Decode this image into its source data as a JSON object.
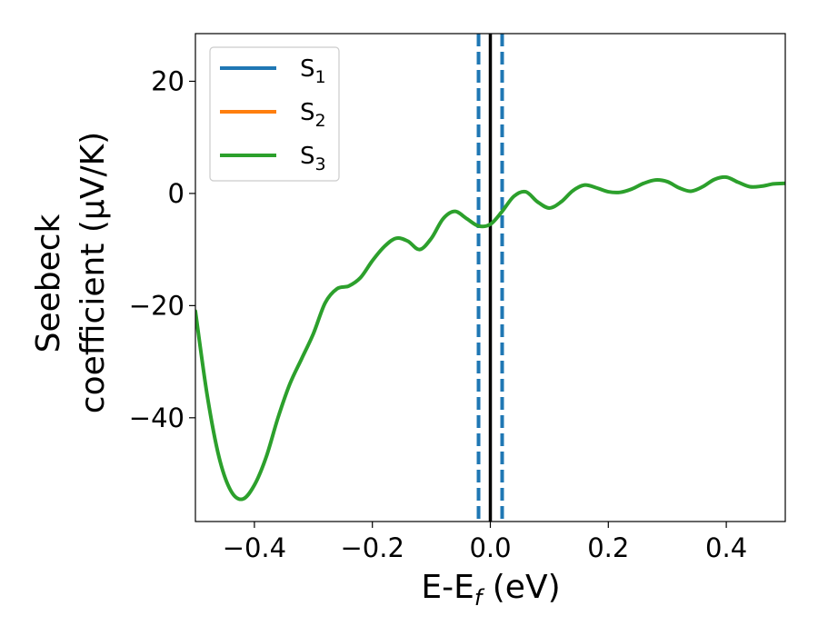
{
  "chart_data": {
    "type": "line",
    "xlabel": "E-E",
    "xlabel_sub": "f",
    "xlabel_unit": " (eV)",
    "ylabel_line1": "Seebeck",
    "ylabel_line2": "coefficient  (μV/K)",
    "xlim": [
      -0.5,
      0.5
    ],
    "ylim": [
      -58.5,
      28.5
    ],
    "x_ticks": [
      -0.4,
      -0.2,
      0.0,
      0.2,
      0.4
    ],
    "x_tick_labels": [
      "−0.4",
      "−0.2",
      "0.0",
      "0.2",
      "0.4"
    ],
    "y_ticks": [
      20,
      0,
      -20,
      -40
    ],
    "y_tick_labels": [
      "20",
      "0",
      "−20",
      "−40"
    ],
    "legend_position": "top-left",
    "series": [
      {
        "name": "S",
        "sub": "1",
        "color": "#1f77b4"
      },
      {
        "name": "S",
        "sub": "2",
        "color": "#ff7f0e"
      },
      {
        "name": "S",
        "sub": "3",
        "color": "#2ca02c",
        "x": [
          -0.5,
          -0.48,
          -0.46,
          -0.44,
          -0.42,
          -0.4,
          -0.38,
          -0.36,
          -0.34,
          -0.32,
          -0.3,
          -0.28,
          -0.26,
          -0.24,
          -0.22,
          -0.2,
          -0.18,
          -0.16,
          -0.14,
          -0.12,
          -0.1,
          -0.08,
          -0.06,
          -0.04,
          -0.02,
          0.0,
          0.02,
          0.04,
          0.06,
          0.08,
          0.1,
          0.12,
          0.14,
          0.16,
          0.18,
          0.2,
          0.22,
          0.24,
          0.26,
          0.28,
          0.3,
          0.32,
          0.34,
          0.36,
          0.38,
          0.4,
          0.42,
          0.44,
          0.46,
          0.48,
          0.5
        ],
        "y": [
          -21,
          -36,
          -47,
          -53,
          -54.5,
          -52,
          -47,
          -40,
          -34,
          -29.5,
          -25,
          -19.5,
          -17,
          -16.5,
          -15,
          -12,
          -9.5,
          -8,
          -8.5,
          -10,
          -8,
          -4.5,
          -3.2,
          -4.5,
          -5.8,
          -5.5,
          -3.2,
          -0.5,
          0.3,
          -1.5,
          -2.6,
          -1.5,
          0.5,
          1.5,
          1.0,
          0.3,
          0.2,
          0.8,
          1.8,
          2.4,
          2.1,
          1.0,
          0.4,
          1.2,
          2.5,
          2.9,
          2.0,
          1.2,
          1.3,
          1.7,
          1.8
        ]
      }
    ],
    "vlines": [
      {
        "x": 0.0,
        "style": "solid",
        "color": "#000000"
      },
      {
        "x": -0.02,
        "style": "dashed",
        "color": "#1f77b4"
      },
      {
        "x": 0.02,
        "style": "dashed",
        "color": "#1f77b4"
      }
    ]
  }
}
